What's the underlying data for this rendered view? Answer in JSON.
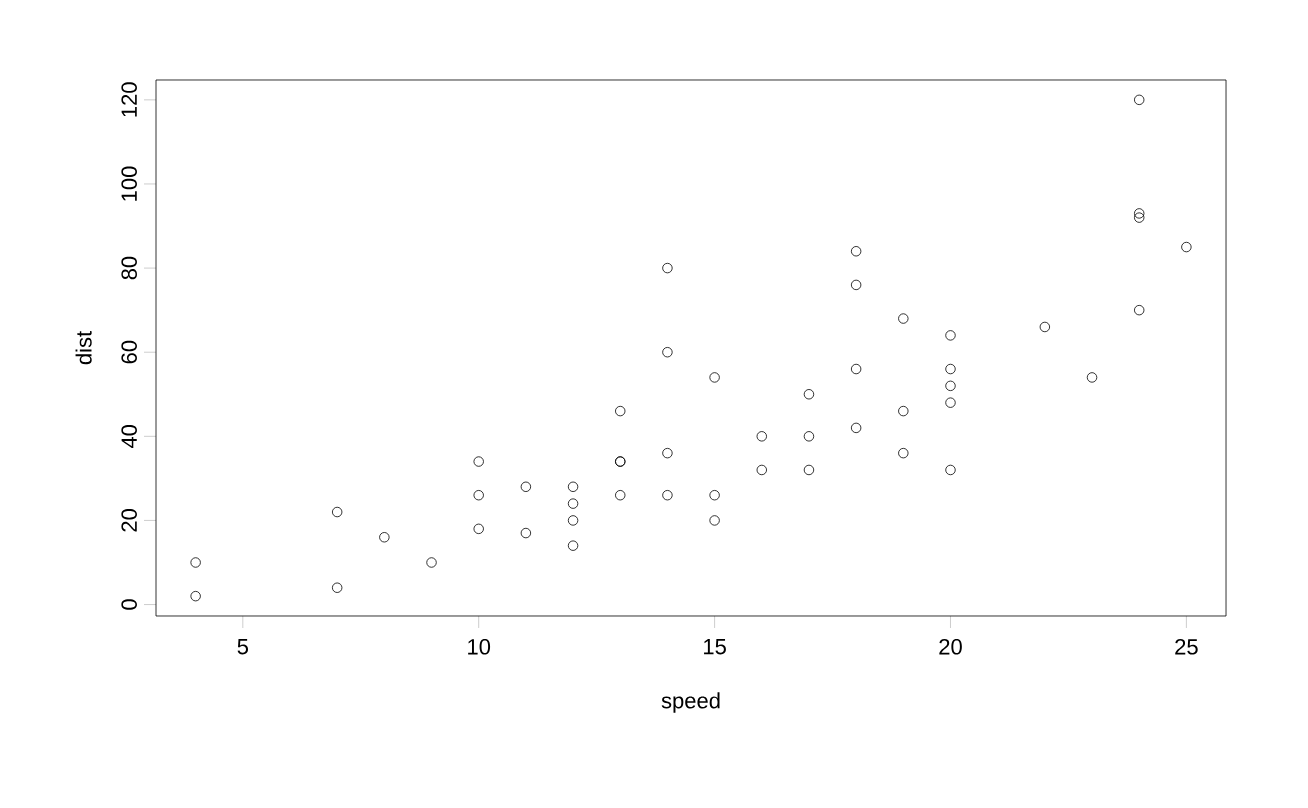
{
  "chart_data": {
    "type": "scatter",
    "xlabel": "speed",
    "ylabel": "dist",
    "x": [
      4,
      4,
      7,
      7,
      8,
      9,
      10,
      10,
      10,
      11,
      11,
      12,
      12,
      12,
      12,
      13,
      13,
      13,
      13,
      14,
      14,
      14,
      14,
      15,
      15,
      15,
      16,
      16,
      17,
      17,
      17,
      18,
      18,
      18,
      18,
      19,
      19,
      19,
      20,
      20,
      20,
      20,
      20,
      22,
      23,
      24,
      24,
      24,
      24,
      25
    ],
    "values": [
      2,
      10,
      4,
      22,
      16,
      10,
      18,
      26,
      34,
      17,
      28,
      14,
      20,
      24,
      28,
      26,
      34,
      34,
      46,
      26,
      36,
      60,
      80,
      20,
      26,
      54,
      32,
      40,
      32,
      40,
      50,
      42,
      56,
      76,
      84,
      36,
      46,
      68,
      32,
      48,
      52,
      56,
      64,
      66,
      54,
      70,
      92,
      93,
      120,
      85
    ],
    "color": "#000000",
    "marker": "circle",
    "xlim": [
      3.16,
      25.84
    ],
    "ylim": [
      -2.72,
      124.72
    ],
    "xticks": [
      5,
      10,
      15,
      20,
      25
    ],
    "yticks": [
      0,
      20,
      40,
      60,
      80,
      100,
      120
    ]
  }
}
